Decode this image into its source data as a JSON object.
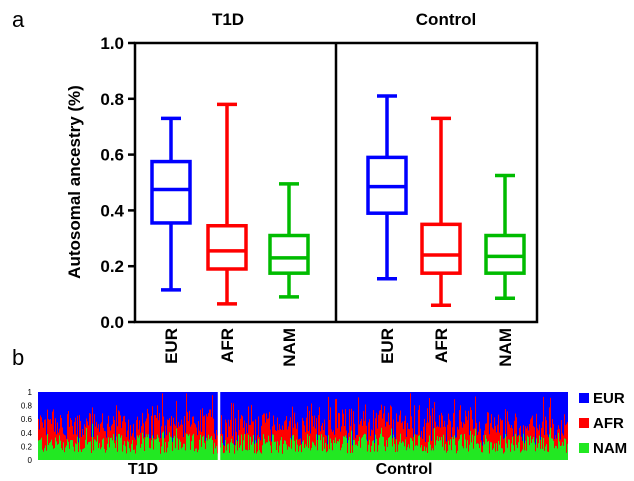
{
  "chart_data": [
    {
      "panel": "a",
      "type": "boxplot",
      "ylabel": "Autosomal ancestry (%)",
      "ylim": [
        0.0,
        1.0
      ],
      "yticks": [
        "0.0",
        "0.2",
        "0.4",
        "0.6",
        "0.8",
        "1.0"
      ],
      "groups": [
        "T1D",
        "Control"
      ],
      "categories": [
        "EUR",
        "AFR",
        "NAM"
      ],
      "colors": {
        "EUR": "#0000ff",
        "AFR": "#ff0000",
        "NAM": "#00bb00"
      },
      "series": [
        {
          "group": "T1D",
          "category": "EUR",
          "min": 0.115,
          "q1": 0.355,
          "median": 0.475,
          "q3": 0.575,
          "max": 0.73
        },
        {
          "group": "T1D",
          "category": "AFR",
          "min": 0.065,
          "q1": 0.19,
          "median": 0.255,
          "q3": 0.345,
          "max": 0.78
        },
        {
          "group": "T1D",
          "category": "NAM",
          "min": 0.09,
          "q1": 0.175,
          "median": 0.23,
          "q3": 0.31,
          "max": 0.495
        },
        {
          "group": "Control",
          "category": "EUR",
          "min": 0.155,
          "q1": 0.39,
          "median": 0.485,
          "q3": 0.59,
          "max": 0.81
        },
        {
          "group": "Control",
          "category": "AFR",
          "min": 0.06,
          "q1": 0.175,
          "median": 0.24,
          "q3": 0.35,
          "max": 0.73
        },
        {
          "group": "Control",
          "category": "NAM",
          "min": 0.085,
          "q1": 0.175,
          "median": 0.235,
          "q3": 0.31,
          "max": 0.525
        }
      ]
    },
    {
      "panel": "b",
      "type": "stacked-bar",
      "ylim": [
        0,
        1
      ],
      "yticks": [
        "0",
        "0.2",
        "0.4",
        "0.6",
        "0.8",
        "1"
      ],
      "groups": [
        "T1D",
        "Control"
      ],
      "legend": [
        {
          "name": "EUR",
          "color": "#0000ff"
        },
        {
          "name": "AFR",
          "color": "#ff0000"
        },
        {
          "name": "NAM",
          "color": "#22e822"
        }
      ],
      "series_order": [
        "NAM",
        "AFR",
        "EUR"
      ],
      "NAM_mean": 0.24,
      "AFR_mean": 0.27
    }
  ]
}
